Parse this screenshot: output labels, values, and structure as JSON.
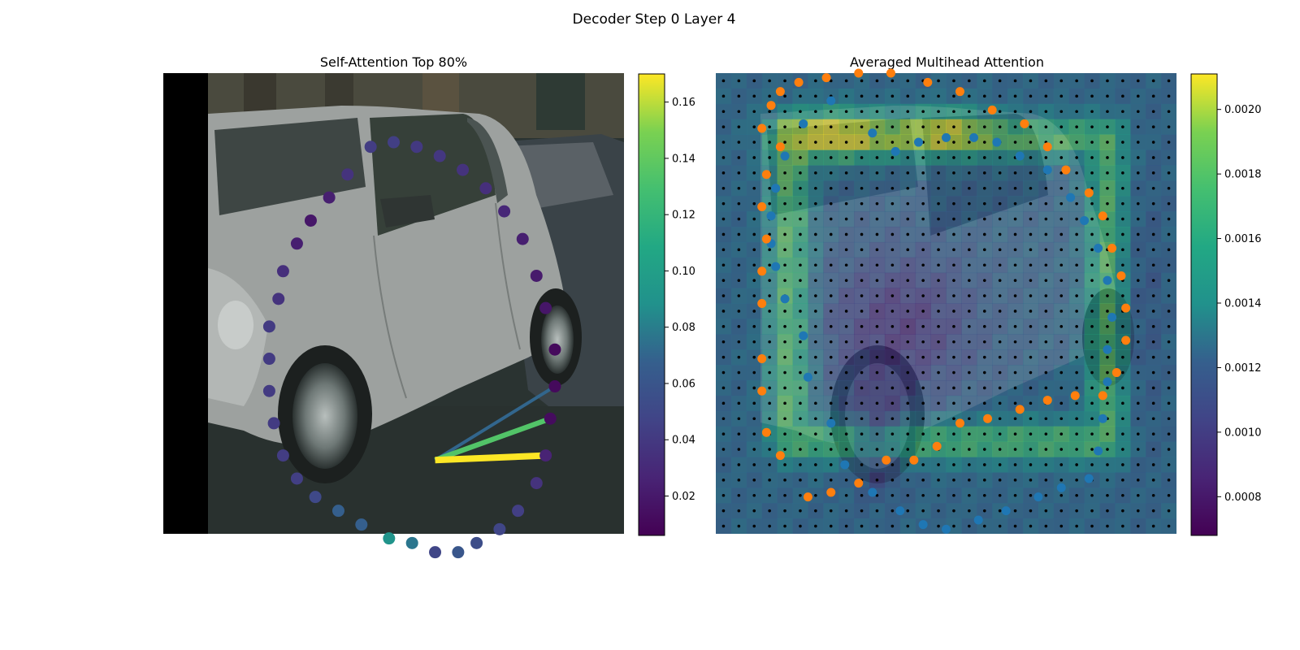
{
  "figure": {
    "title": "Decoder Step 0 Layer 4"
  },
  "left_panel": {
    "title": "Self-Attention Top 80%",
    "colorbar_ticks": [
      "0.02",
      "0.04",
      "0.06",
      "0.08",
      "0.10",
      "0.12",
      "0.14",
      "0.16"
    ]
  },
  "right_panel": {
    "title": "Averaged Multihead Attention",
    "colorbar_ticks": [
      "0.0008",
      "0.0010",
      "0.0012",
      "0.0014",
      "0.0016",
      "0.0018",
      "0.0020"
    ]
  },
  "chart_data": [
    {
      "type": "scatter",
      "title": "Self-Attention Top 80%",
      "background": "photo of a silver hatchback car parked on a street (image panel, no axes)",
      "colormap": "viridis",
      "colorbar": {
        "min": 0.006,
        "max": 0.17,
        "ticks": [
          0.02,
          0.04,
          0.06,
          0.08,
          0.1,
          0.12,
          0.14,
          0.16
        ]
      },
      "query_point": [
        0.59,
        0.16
      ],
      "points": [
        {
          "x": 0.45,
          "y": 0.84,
          "v": 0.035
        },
        {
          "x": 0.5,
          "y": 0.85,
          "v": 0.036
        },
        {
          "x": 0.55,
          "y": 0.84,
          "v": 0.033
        },
        {
          "x": 0.6,
          "y": 0.82,
          "v": 0.032
        },
        {
          "x": 0.65,
          "y": 0.79,
          "v": 0.03
        },
        {
          "x": 0.7,
          "y": 0.75,
          "v": 0.028
        },
        {
          "x": 0.74,
          "y": 0.7,
          "v": 0.024
        },
        {
          "x": 0.78,
          "y": 0.64,
          "v": 0.02
        },
        {
          "x": 0.81,
          "y": 0.56,
          "v": 0.018
        },
        {
          "x": 0.83,
          "y": 0.49,
          "v": 0.016
        },
        {
          "x": 0.85,
          "y": 0.4,
          "v": 0.01
        },
        {
          "x": 0.85,
          "y": 0.32,
          "v": 0.01
        },
        {
          "x": 0.84,
          "y": 0.25,
          "v": 0.011
        },
        {
          "x": 0.83,
          "y": 0.17,
          "v": 0.022
        },
        {
          "x": 0.81,
          "y": 0.11,
          "v": 0.03
        },
        {
          "x": 0.77,
          "y": 0.05,
          "v": 0.036
        },
        {
          "x": 0.73,
          "y": 0.01,
          "v": 0.04
        },
        {
          "x": 0.68,
          "y": -0.02,
          "v": 0.044
        },
        {
          "x": 0.64,
          "y": -0.04,
          "v": 0.05
        },
        {
          "x": 0.59,
          "y": -0.04,
          "v": 0.04
        },
        {
          "x": 0.54,
          "y": -0.02,
          "v": 0.07
        },
        {
          "x": 0.49,
          "y": -0.01,
          "v": 0.09
        },
        {
          "x": 0.43,
          "y": 0.02,
          "v": 0.055
        },
        {
          "x": 0.38,
          "y": 0.05,
          "v": 0.055
        },
        {
          "x": 0.33,
          "y": 0.08,
          "v": 0.042
        },
        {
          "x": 0.29,
          "y": 0.12,
          "v": 0.036
        },
        {
          "x": 0.26,
          "y": 0.17,
          "v": 0.035
        },
        {
          "x": 0.24,
          "y": 0.24,
          "v": 0.034
        },
        {
          "x": 0.23,
          "y": 0.31,
          "v": 0.034
        },
        {
          "x": 0.23,
          "y": 0.38,
          "v": 0.034
        },
        {
          "x": 0.23,
          "y": 0.45,
          "v": 0.034
        },
        {
          "x": 0.25,
          "y": 0.51,
          "v": 0.03
        },
        {
          "x": 0.26,
          "y": 0.57,
          "v": 0.028
        },
        {
          "x": 0.29,
          "y": 0.63,
          "v": 0.02
        },
        {
          "x": 0.32,
          "y": 0.68,
          "v": 0.016
        },
        {
          "x": 0.36,
          "y": 0.73,
          "v": 0.02
        },
        {
          "x": 0.4,
          "y": 0.78,
          "v": 0.03
        }
      ],
      "top_links": [
        {
          "to": [
            0.83,
            0.17
          ],
          "v": 0.17
        },
        {
          "to": [
            0.84,
            0.25
          ],
          "v": 0.125
        },
        {
          "to": [
            0.85,
            0.32
          ],
          "v": 0.06
        }
      ]
    },
    {
      "type": "heatmap",
      "title": "Averaged Multihead Attention",
      "background": "same car photo overlaid with a 30x30 attention heatmap and a regular grid of small black reference dots",
      "colormap": "viridis",
      "colorbar": {
        "min": 0.00068,
        "max": 0.00211,
        "ticks": [
          0.0008,
          0.001,
          0.0012,
          0.0014,
          0.0016,
          0.0018,
          0.002
        ]
      },
      "series": [
        {
          "color": "#1f77b4",
          "points": [
            {
              "x": 0.44,
              "y": 0.85
            },
            {
              "x": 0.5,
              "y": 0.86
            },
            {
              "x": 0.56,
              "y": 0.86
            },
            {
              "x": 0.61,
              "y": 0.85
            },
            {
              "x": 0.66,
              "y": 0.82
            },
            {
              "x": 0.72,
              "y": 0.79
            },
            {
              "x": 0.77,
              "y": 0.73
            },
            {
              "x": 0.8,
              "y": 0.68
            },
            {
              "x": 0.83,
              "y": 0.62
            },
            {
              "x": 0.85,
              "y": 0.55
            },
            {
              "x": 0.86,
              "y": 0.47
            },
            {
              "x": 0.85,
              "y": 0.4
            },
            {
              "x": 0.85,
              "y": 0.33
            },
            {
              "x": 0.84,
              "y": 0.25
            },
            {
              "x": 0.83,
              "y": 0.18
            },
            {
              "x": 0.81,
              "y": 0.12
            },
            {
              "x": 0.75,
              "y": 0.1
            },
            {
              "x": 0.7,
              "y": 0.08
            },
            {
              "x": 0.63,
              "y": 0.05
            },
            {
              "x": 0.57,
              "y": 0.03
            },
            {
              "x": 0.5,
              "y": 0.01
            },
            {
              "x": 0.45,
              "y": 0.02
            },
            {
              "x": 0.4,
              "y": 0.05
            },
            {
              "x": 0.34,
              "y": 0.09
            },
            {
              "x": 0.28,
              "y": 0.15
            },
            {
              "x": 0.25,
              "y": 0.24
            },
            {
              "x": 0.2,
              "y": 0.34
            },
            {
              "x": 0.19,
              "y": 0.43
            },
            {
              "x": 0.15,
              "y": 0.51
            },
            {
              "x": 0.13,
              "y": 0.58
            },
            {
              "x": 0.12,
              "y": 0.63
            },
            {
              "x": 0.12,
              "y": 0.69
            },
            {
              "x": 0.13,
              "y": 0.75
            },
            {
              "x": 0.15,
              "y": 0.82
            },
            {
              "x": 0.19,
              "y": 0.89
            },
            {
              "x": 0.25,
              "y": 0.94
            },
            {
              "x": 0.34,
              "y": 0.87
            },
            {
              "x": 0.39,
              "y": 0.83
            }
          ]
        },
        {
          "color": "#ff7f0e",
          "points": [
            {
              "x": 0.1,
              "y": 0.88
            },
            {
              "x": 0.12,
              "y": 0.93
            },
            {
              "x": 0.14,
              "y": 0.96
            },
            {
              "x": 0.18,
              "y": 0.98
            },
            {
              "x": 0.24,
              "y": 0.99
            },
            {
              "x": 0.31,
              "y": 1.0
            },
            {
              "x": 0.38,
              "y": 1.0
            },
            {
              "x": 0.46,
              "y": 0.98
            },
            {
              "x": 0.53,
              "y": 0.96
            },
            {
              "x": 0.6,
              "y": 0.92
            },
            {
              "x": 0.67,
              "y": 0.89
            },
            {
              "x": 0.72,
              "y": 0.84
            },
            {
              "x": 0.76,
              "y": 0.79
            },
            {
              "x": 0.81,
              "y": 0.74
            },
            {
              "x": 0.84,
              "y": 0.69
            },
            {
              "x": 0.86,
              "y": 0.62
            },
            {
              "x": 0.88,
              "y": 0.56
            },
            {
              "x": 0.89,
              "y": 0.49
            },
            {
              "x": 0.89,
              "y": 0.42
            },
            {
              "x": 0.87,
              "y": 0.35
            },
            {
              "x": 0.84,
              "y": 0.3
            },
            {
              "x": 0.78,
              "y": 0.3
            },
            {
              "x": 0.72,
              "y": 0.29
            },
            {
              "x": 0.66,
              "y": 0.27
            },
            {
              "x": 0.59,
              "y": 0.25
            },
            {
              "x": 0.53,
              "y": 0.24
            },
            {
              "x": 0.48,
              "y": 0.19
            },
            {
              "x": 0.43,
              "y": 0.16
            },
            {
              "x": 0.37,
              "y": 0.16
            },
            {
              "x": 0.31,
              "y": 0.11
            },
            {
              "x": 0.25,
              "y": 0.09
            },
            {
              "x": 0.2,
              "y": 0.08
            },
            {
              "x": 0.14,
              "y": 0.17
            },
            {
              "x": 0.11,
              "y": 0.22
            },
            {
              "x": 0.1,
              "y": 0.31
            },
            {
              "x": 0.1,
              "y": 0.38
            },
            {
              "x": 0.1,
              "y": 0.5
            },
            {
              "x": 0.1,
              "y": 0.57
            },
            {
              "x": 0.11,
              "y": 0.64
            },
            {
              "x": 0.1,
              "y": 0.71
            },
            {
              "x": 0.11,
              "y": 0.78
            },
            {
              "x": 0.14,
              "y": 0.84
            }
          ]
        }
      ]
    }
  ]
}
